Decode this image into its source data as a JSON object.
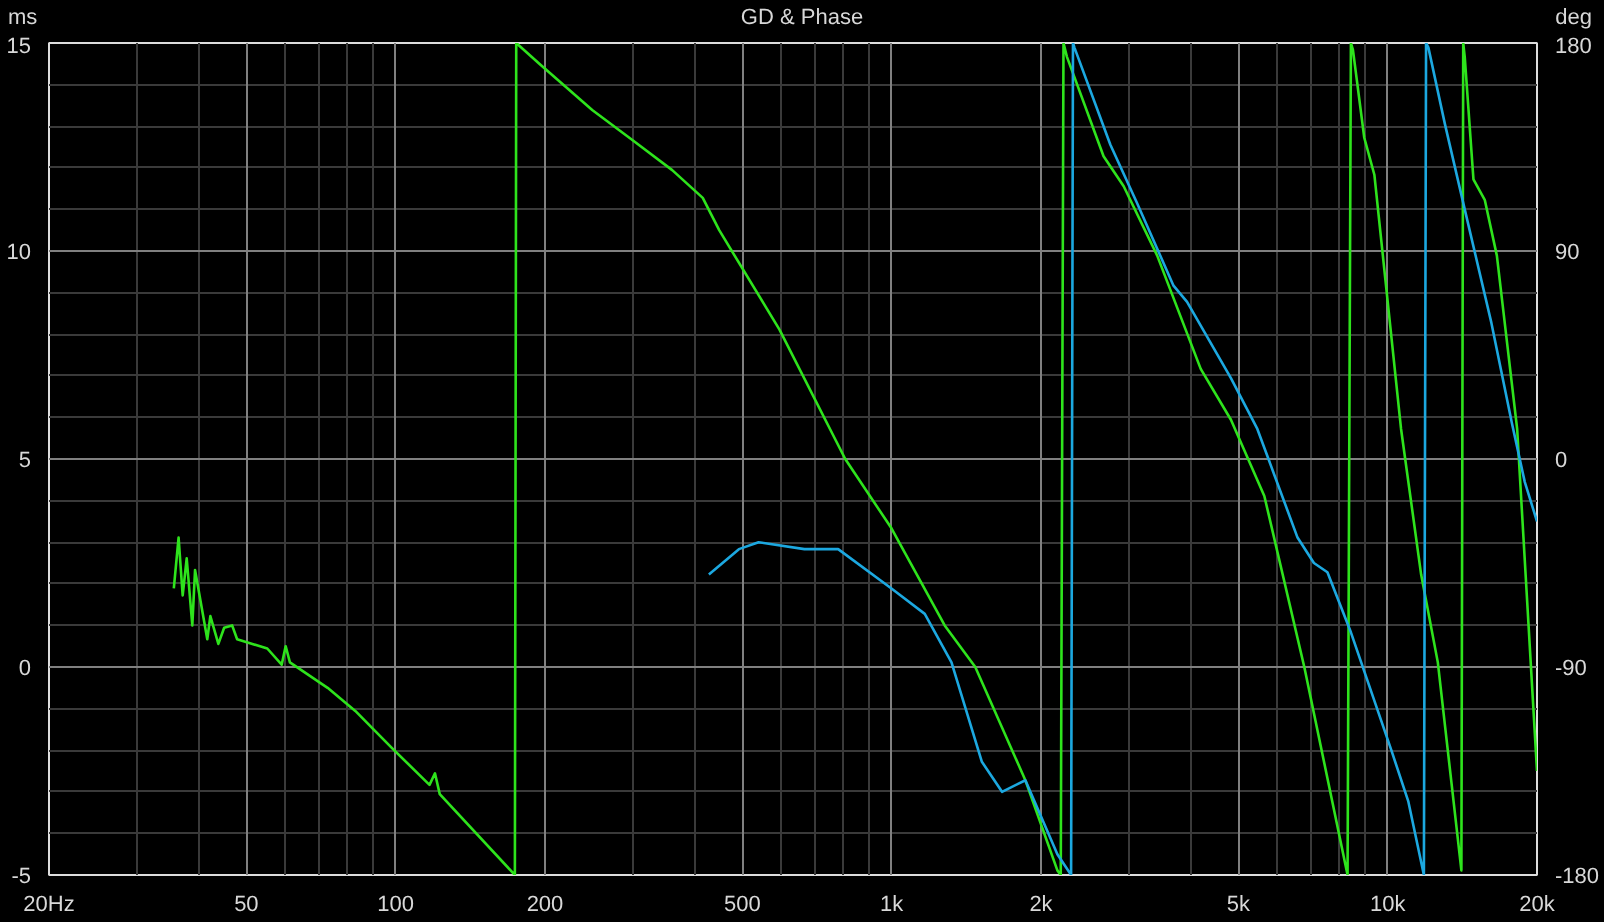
{
  "chart_data": {
    "type": "line",
    "title": "GD & Phase",
    "ylabel": "ms",
    "y2label": "deg",
    "log": "x",
    "grid": true,
    "line_style": "solid",
    "xlim": [
      20,
      20000
    ],
    "xticks": [
      {
        "value": 20,
        "label": "20Hz"
      },
      {
        "value": 30,
        "label": null
      },
      {
        "value": 40,
        "label": null
      },
      {
        "value": 50,
        "label": "50"
      },
      {
        "value": 60,
        "label": null
      },
      {
        "value": 70,
        "label": null
      },
      {
        "value": 80,
        "label": null
      },
      {
        "value": 90,
        "label": null
      },
      {
        "value": 100,
        "label": "100"
      },
      {
        "value": 200,
        "label": "200"
      },
      {
        "value": 300,
        "label": null
      },
      {
        "value": 400,
        "label": null
      },
      {
        "value": 500,
        "label": "500"
      },
      {
        "value": 600,
        "label": null
      },
      {
        "value": 700,
        "label": null
      },
      {
        "value": 800,
        "label": null
      },
      {
        "value": 900,
        "label": null
      },
      {
        "value": 1000,
        "label": "1k"
      },
      {
        "value": 2000,
        "label": "2k"
      },
      {
        "value": 3000,
        "label": null
      },
      {
        "value": 4000,
        "label": null
      },
      {
        "value": 5000,
        "label": "5k"
      },
      {
        "value": 6000,
        "label": null
      },
      {
        "value": 7000,
        "label": null
      },
      {
        "value": 8000,
        "label": null
      },
      {
        "value": 9000,
        "label": null
      },
      {
        "value": 10000,
        "label": "10k"
      },
      {
        "value": 20000,
        "label": "20k"
      }
    ],
    "ylim": [
      -5,
      15
    ],
    "yticks": [
      -5,
      {
        "value": -4,
        "label": null
      },
      {
        "value": -3,
        "label": null
      },
      {
        "value": -2,
        "label": null
      },
      {
        "value": -1,
        "label": null
      },
      0,
      {
        "value": 1,
        "label": null
      },
      {
        "value": 2,
        "label": null
      },
      {
        "value": 3,
        "label": null
      },
      {
        "value": 4,
        "label": null
      },
      5,
      {
        "value": 6,
        "label": null
      },
      {
        "value": 7,
        "label": null
      },
      {
        "value": 8,
        "label": null
      },
      {
        "value": 9,
        "label": null
      },
      10,
      {
        "value": 11,
        "label": null
      },
      {
        "value": 12,
        "label": null
      },
      {
        "value": 13,
        "label": null
      },
      {
        "value": 14,
        "label": null
      },
      15
    ],
    "y2lim": [
      -180,
      180
    ],
    "y2ticks": [
      -180,
      -90,
      0,
      90,
      180
    ],
    "series": [
      {
        "color": "#2ee31c",
        "axis": "y2",
        "x": [
          35.7,
          36.5,
          37.2,
          37.9,
          38.9,
          39.4,
          41.7,
          42.3,
          43.9,
          45.1,
          46.8,
          47.9,
          55.1,
          58.9,
          60,
          61.2,
          72.9,
          82.9,
          98.2,
          117,
          120,
          122.7,
          173.9,
          175,
          194.8,
          249,
          300,
          361,
          416,
          449,
          594,
          806,
          999,
          1279,
          1474,
          1860,
          2158,
          2192,
          2220,
          2256,
          2674,
          2936,
          3430,
          4198,
          4830,
          5640,
          6790,
          8300,
          8430,
          8510,
          8970,
          9400,
          10640,
          11680,
          12620,
          14080,
          14200,
          14300,
          14890,
          15700,
          16600,
          18240,
          20000
        ],
        "values": [
          -56,
          -34,
          -59,
          -43,
          -72,
          -48,
          -78,
          -68,
          -80,
          -73,
          -72,
          -78,
          -82,
          -89,
          -81,
          -88,
          -99,
          -109,
          -125,
          -141,
          -136,
          -145,
          -180,
          180,
          171,
          151,
          138,
          125,
          113,
          99,
          56,
          0,
          -30,
          -72,
          -90,
          -139,
          -178,
          -180,
          180,
          174,
          131,
          118,
          88,
          39,
          17,
          -16,
          -90,
          -180,
          180,
          177,
          139,
          123,
          13,
          -50,
          -88,
          -178,
          180,
          174,
          121,
          112,
          88,
          13,
          -135
        ]
      },
      {
        "color": "#1ca8e0",
        "axis": "y2",
        "x": [
          428,
          492,
          539,
          667,
          780,
          999,
          1166,
          1320,
          1520,
          1669,
          1860,
          2158,
          2300,
          2320,
          2336,
          2760,
          3120,
          3700,
          3940,
          4830,
          5460,
          6580,
          7100,
          7560,
          8430,
          10170,
          11000,
          11830,
          11950,
          12080,
          13040,
          14300,
          16180,
          17780,
          18900,
          20000
        ],
        "values": [
          -50,
          -39,
          -36,
          -39,
          -39,
          -56,
          -67,
          -88,
          -131,
          -144,
          -139,
          -171,
          -180,
          180,
          178,
          136,
          111,
          75,
          68,
          35,
          13,
          -34,
          -45,
          -49,
          -75,
          -126,
          -148,
          -180,
          180,
          178,
          145,
          108,
          59,
          16,
          -10,
          -27
        ]
      }
    ]
  }
}
